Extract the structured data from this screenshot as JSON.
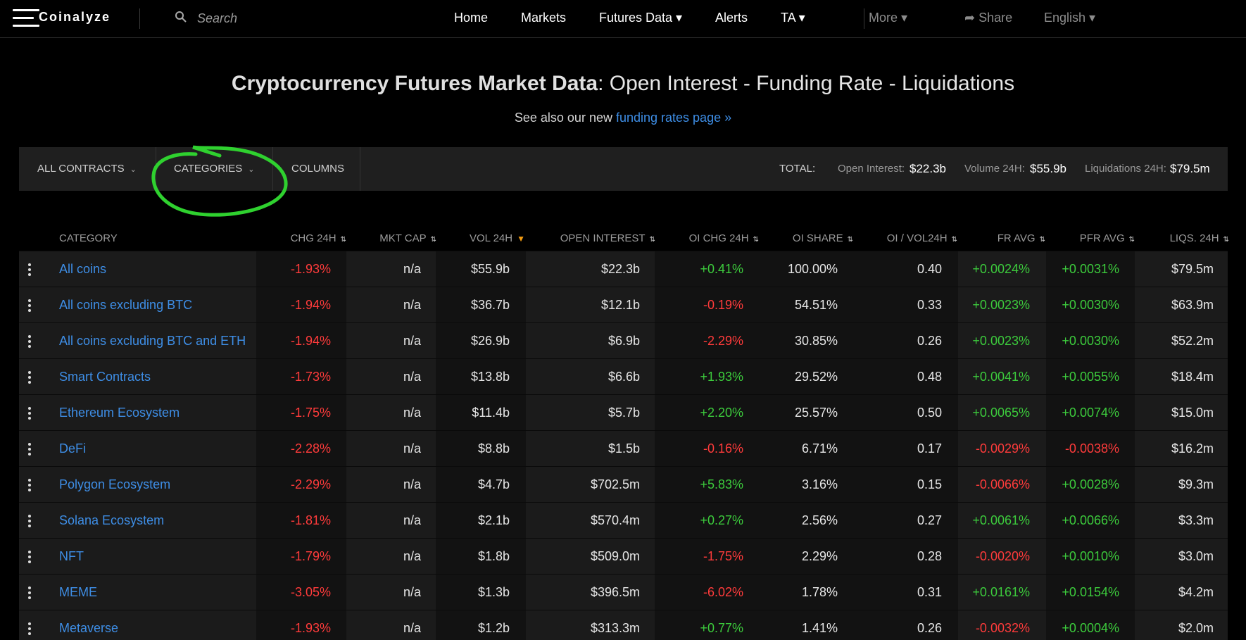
{
  "nav": {
    "logo": "Coinalyze",
    "search_placeholder": "Search",
    "items": [
      "Home",
      "Markets",
      "Futures Data ▾",
      "Alerts",
      "TA ▾"
    ],
    "right_items": [
      "More ▾",
      "Share",
      "English ▾"
    ]
  },
  "header": {
    "title_bold": "Cryptocurrency Futures Market Data",
    "title_rest": ": Open Interest - Funding Rate - Liquidations",
    "subtitle_text": "See also our new ",
    "subtitle_link": "funding rates page »"
  },
  "toolbar": {
    "contracts_label": "ALL CONTRACTS",
    "categories_label": "CATEGORIES",
    "columns_label": "COLUMNS",
    "total_label": "TOTAL:",
    "oi_label": "Open Interest:",
    "oi_value": "$22.3b",
    "vol_label": "Volume 24H:",
    "vol_value": "$55.9b",
    "liq_label": "Liquidations 24H:",
    "liq_value": "$79.5m"
  },
  "table": {
    "headers": [
      "CATEGORY",
      "CHG 24H",
      "MKT CAP",
      "VOL 24H",
      "OPEN INTEREST",
      "OI CHG 24H",
      "OI SHARE",
      "OI / VOL24H",
      "FR AVG",
      "PFR AVG",
      "LIQS. 24H"
    ],
    "sorted_column": "VOL 24H",
    "rows": [
      [
        "All coins",
        "-1.93%",
        "n/a",
        "$55.9b",
        "$22.3b",
        "+0.41%",
        "100.00%",
        "0.40",
        "+0.0024%",
        "+0.0031%",
        "$79.5m"
      ],
      [
        "All coins excluding BTC",
        "-1.94%",
        "n/a",
        "$36.7b",
        "$12.1b",
        "-0.19%",
        "54.51%",
        "0.33",
        "+0.0023%",
        "+0.0030%",
        "$63.9m"
      ],
      [
        "All coins excluding BTC and ETH",
        "-1.94%",
        "n/a",
        "$26.9b",
        "$6.9b",
        "-2.29%",
        "30.85%",
        "0.26",
        "+0.0023%",
        "+0.0030%",
        "$52.2m"
      ],
      [
        "Smart Contracts",
        "-1.73%",
        "n/a",
        "$13.8b",
        "$6.6b",
        "+1.93%",
        "29.52%",
        "0.48",
        "+0.0041%",
        "+0.0055%",
        "$18.4m"
      ],
      [
        "Ethereum Ecosystem",
        "-1.75%",
        "n/a",
        "$11.4b",
        "$5.7b",
        "+2.20%",
        "25.57%",
        "0.50",
        "+0.0065%",
        "+0.0074%",
        "$15.0m"
      ],
      [
        "DeFi",
        "-2.28%",
        "n/a",
        "$8.8b",
        "$1.5b",
        "-0.16%",
        "6.71%",
        "0.17",
        "-0.0029%",
        "-0.0038%",
        "$16.2m"
      ],
      [
        "Polygon Ecosystem",
        "-2.29%",
        "n/a",
        "$4.7b",
        "$702.5m",
        "+5.83%",
        "3.16%",
        "0.15",
        "-0.0066%",
        "+0.0028%",
        "$9.3m"
      ],
      [
        "Solana Ecosystem",
        "-1.81%",
        "n/a",
        "$2.1b",
        "$570.4m",
        "+0.27%",
        "2.56%",
        "0.27",
        "+0.0061%",
        "+0.0066%",
        "$3.3m"
      ],
      [
        "NFT",
        "-1.79%",
        "n/a",
        "$1.8b",
        "$509.0m",
        "-1.75%",
        "2.29%",
        "0.28",
        "-0.0020%",
        "+0.0010%",
        "$3.0m"
      ],
      [
        "MEME",
        "-3.05%",
        "n/a",
        "$1.3b",
        "$396.5m",
        "-6.02%",
        "1.78%",
        "0.31",
        "+0.0161%",
        "+0.0154%",
        "$4.2m"
      ],
      [
        "Metaverse",
        "-1.93%",
        "n/a",
        "$1.2b",
        "$313.3m",
        "+0.77%",
        "1.41%",
        "0.26",
        "-0.0032%",
        "+0.0004%",
        "$2.0m"
      ]
    ]
  },
  "colors": {
    "positive": "#3ccb3c",
    "negative": "#ff3b3b",
    "link": "#3e8ee6",
    "highlight": "#2fd12f",
    "sort_active": "#f39c12"
  }
}
